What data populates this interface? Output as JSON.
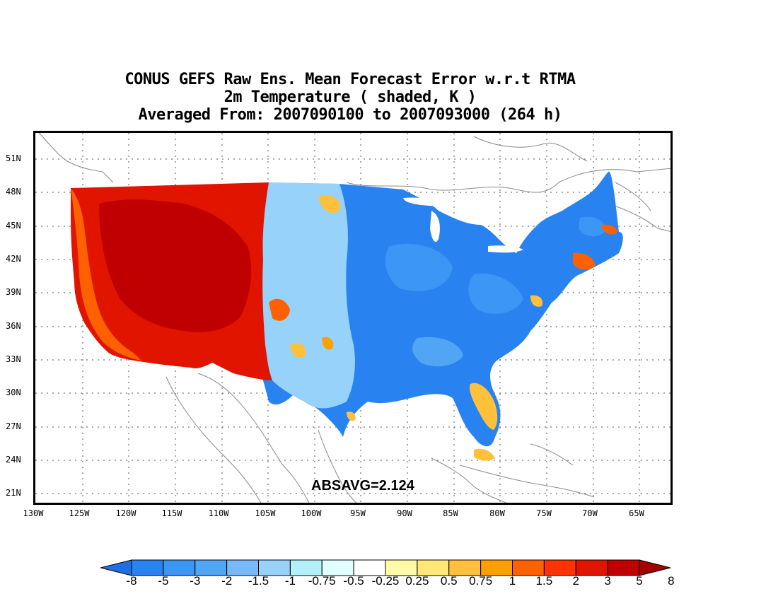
{
  "title": {
    "line1": "CONUS GEFS Raw Ens. Mean Forecast Error w.r.t RTMA",
    "line2": "2m Temperature ( shaded, K )",
    "line3": "Averaged From: 2007090100 to 2007093000 (264 h)"
  },
  "annotation": "ABSAVG=2.124",
  "lat_labels": [
    "51N",
    "48N",
    "45N",
    "42N",
    "39N",
    "36N",
    "33N",
    "30N",
    "27N",
    "24N",
    "21N"
  ],
  "lon_labels": [
    "130W",
    "125W",
    "120W",
    "115W",
    "110W",
    "105W",
    "100W",
    "95W",
    "90W",
    "85W",
    "80W",
    "75W",
    "70W",
    "65W"
  ],
  "colorbar": {
    "labels": [
      "-8",
      "-5",
      "-3",
      "-2",
      "-1.5",
      "-1",
      "-0.75",
      "-0.5",
      "-0.25",
      "0.25",
      "0.5",
      "0.75",
      "1",
      "1.5",
      "2",
      "3",
      "5",
      "8"
    ],
    "colors": [
      "#1e6ee6",
      "#2882f0",
      "#3c96f5",
      "#50a5f5",
      "#78b9fa",
      "#96d2fa",
      "#b4f0fa",
      "#e1ffff",
      "#ffffff",
      "#fffaaa",
      "#ffe878",
      "#ffc03c",
      "#ffa000",
      "#ff6000",
      "#ff3200",
      "#e11400",
      "#c00000",
      "#a50000"
    ],
    "under_color": "#1e6ee6",
    "over_color": "#a50000"
  },
  "map_colors": {
    "west_dark": "#c00000",
    "west_red": "#e11400",
    "west_orange": "#ff6000",
    "plains_light": "#96d2fa",
    "east_blue": "#2882f0",
    "east_mid": "#3c96f5",
    "coast_yellow": "#ffc03c",
    "outline": "#888888"
  }
}
